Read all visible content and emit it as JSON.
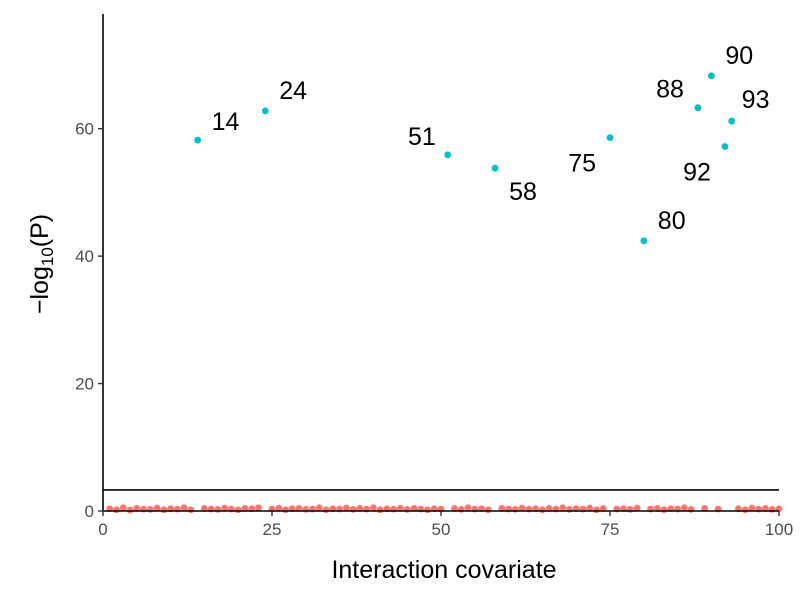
{
  "chart_data": {
    "type": "scatter",
    "xlabel": "Interaction covariate",
    "ylabel": {
      "prefix": "−log",
      "subscript": "10",
      "suffix": "(P)"
    },
    "xlim": [
      0,
      100
    ],
    "ylim": [
      0,
      78
    ],
    "xticks": [
      0,
      25,
      50,
      75,
      100
    ],
    "yticks": [
      0,
      20,
      40,
      60
    ],
    "grid": false,
    "threshold": 3.3,
    "colors": {
      "significant": "#00BFC4",
      "nonsignificant": "#F8766D",
      "axis": "#000000"
    },
    "significant_points": [
      {
        "x": 14,
        "y": 58.2,
        "label": "14"
      },
      {
        "x": 24,
        "y": 62.8,
        "label": "24"
      },
      {
        "x": 51,
        "y": 55.9,
        "label": "51"
      },
      {
        "x": 58,
        "y": 53.8,
        "label": "58"
      },
      {
        "x": 75,
        "y": 58.6,
        "label": "75"
      },
      {
        "x": 80,
        "y": 42.4,
        "label": "80"
      },
      {
        "x": 88,
        "y": 63.3,
        "label": "88"
      },
      {
        "x": 90,
        "y": 68.3,
        "label": "90"
      },
      {
        "x": 92,
        "y": 57.2,
        "label": "92"
      },
      {
        "x": 93,
        "y": 61.2,
        "label": "93"
      }
    ],
    "nonsignificant_points": [
      {
        "x": 1,
        "y": 0.35
      },
      {
        "x": 2,
        "y": 0.2
      },
      {
        "x": 3,
        "y": 0.5
      },
      {
        "x": 4,
        "y": 0.15
      },
      {
        "x": 5,
        "y": 0.4
      },
      {
        "x": 6,
        "y": 0.3
      },
      {
        "x": 7,
        "y": 0.25
      },
      {
        "x": 8,
        "y": 0.45
      },
      {
        "x": 9,
        "y": 0.2
      },
      {
        "x": 10,
        "y": 0.35
      },
      {
        "x": 11,
        "y": 0.3
      },
      {
        "x": 12,
        "y": 0.5
      },
      {
        "x": 13,
        "y": 0.2
      },
      {
        "x": 15,
        "y": 0.4
      },
      {
        "x": 16,
        "y": 0.3
      },
      {
        "x": 17,
        "y": 0.25
      },
      {
        "x": 18,
        "y": 0.45
      },
      {
        "x": 19,
        "y": 0.3
      },
      {
        "x": 20,
        "y": 0.2
      },
      {
        "x": 21,
        "y": 0.4
      },
      {
        "x": 22,
        "y": 0.35
      },
      {
        "x": 23,
        "y": 0.5
      },
      {
        "x": 25,
        "y": 0.3
      },
      {
        "x": 26,
        "y": 0.45
      },
      {
        "x": 27,
        "y": 0.2
      },
      {
        "x": 28,
        "y": 0.35
      },
      {
        "x": 29,
        "y": 0.4
      },
      {
        "x": 30,
        "y": 0.25
      },
      {
        "x": 31,
        "y": 0.3
      },
      {
        "x": 32,
        "y": 0.5
      },
      {
        "x": 33,
        "y": 0.2
      },
      {
        "x": 34,
        "y": 0.35
      },
      {
        "x": 35,
        "y": 0.3
      },
      {
        "x": 36,
        "y": 0.45
      },
      {
        "x": 37,
        "y": 0.25
      },
      {
        "x": 38,
        "y": 0.4
      },
      {
        "x": 39,
        "y": 0.3
      },
      {
        "x": 40,
        "y": 0.5
      },
      {
        "x": 41,
        "y": 0.2
      },
      {
        "x": 42,
        "y": 0.35
      },
      {
        "x": 43,
        "y": 0.3
      },
      {
        "x": 44,
        "y": 0.45
      },
      {
        "x": 45,
        "y": 0.25
      },
      {
        "x": 46,
        "y": 0.4
      },
      {
        "x": 47,
        "y": 0.3
      },
      {
        "x": 48,
        "y": 0.2
      },
      {
        "x": 49,
        "y": 0.35
      },
      {
        "x": 50,
        "y": 0.3
      },
      {
        "x": 52,
        "y": 0.4
      },
      {
        "x": 53,
        "y": 0.25
      },
      {
        "x": 54,
        "y": 0.5
      },
      {
        "x": 55,
        "y": 0.3
      },
      {
        "x": 56,
        "y": 0.35
      },
      {
        "x": 57,
        "y": 0.2
      },
      {
        "x": 59,
        "y": 0.4
      },
      {
        "x": 60,
        "y": 0.3
      },
      {
        "x": 61,
        "y": 0.25
      },
      {
        "x": 62,
        "y": 0.45
      },
      {
        "x": 63,
        "y": 0.3
      },
      {
        "x": 64,
        "y": 0.35
      },
      {
        "x": 65,
        "y": 0.2
      },
      {
        "x": 66,
        "y": 0.4
      },
      {
        "x": 67,
        "y": 0.3
      },
      {
        "x": 68,
        "y": 0.5
      },
      {
        "x": 69,
        "y": 0.25
      },
      {
        "x": 70,
        "y": 0.35
      },
      {
        "x": 71,
        "y": 0.3
      },
      {
        "x": 72,
        "y": 0.45
      },
      {
        "x": 73,
        "y": 0.2
      },
      {
        "x": 74,
        "y": 0.4
      },
      {
        "x": 76,
        "y": 0.3
      },
      {
        "x": 77,
        "y": 0.35
      },
      {
        "x": 78,
        "y": 0.25
      },
      {
        "x": 79,
        "y": 0.45
      },
      {
        "x": 81,
        "y": 0.3
      },
      {
        "x": 82,
        "y": 0.4
      },
      {
        "x": 83,
        "y": 0.2
      },
      {
        "x": 84,
        "y": 0.35
      },
      {
        "x": 85,
        "y": 0.3
      },
      {
        "x": 86,
        "y": 0.5
      },
      {
        "x": 87,
        "y": 0.25
      },
      {
        "x": 89,
        "y": 0.4
      },
      {
        "x": 91,
        "y": 0.3
      },
      {
        "x": 94,
        "y": 0.35
      },
      {
        "x": 95,
        "y": 0.2
      },
      {
        "x": 96,
        "y": 0.45
      },
      {
        "x": 97,
        "y": 0.3
      },
      {
        "x": 98,
        "y": 0.4
      },
      {
        "x": 99,
        "y": 0.25
      },
      {
        "x": 100,
        "y": 0.35
      }
    ]
  }
}
